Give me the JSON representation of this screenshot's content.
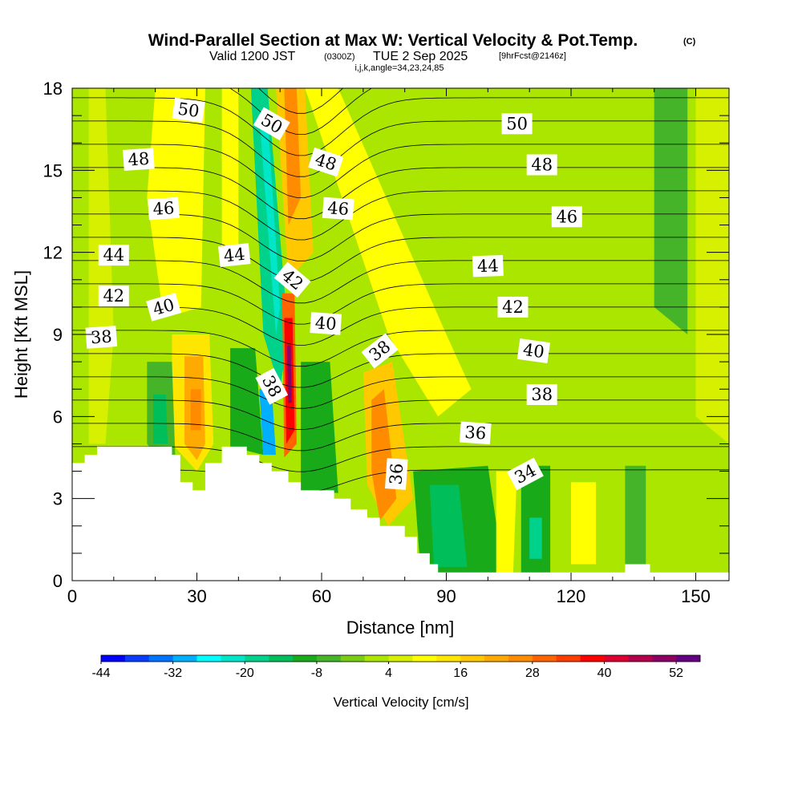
{
  "chart_data": {
    "type": "heatmap",
    "title": "Wind-Parallel Section at Max W: Vertical Velocity & Pot.Temp.",
    "title_mark": "(C)",
    "subtitle": {
      "valid": "Valid 1200 JST",
      "utc": "(0300Z)",
      "date": "TUE 2 Sep 2025",
      "forecast": "[9hrFcst@2146z]"
    },
    "indices": "i,j,k,angle=34,23,24,85",
    "xlabel": "Distance [nm]",
    "ylabel": "Height [Kft MSL]",
    "xlim": [
      0,
      158
    ],
    "ylim": [
      0,
      18
    ],
    "xticks": [
      "0",
      "30",
      "60",
      "90",
      "120",
      "150"
    ],
    "yticks": [
      "0",
      "3",
      "6",
      "9",
      "12",
      "15",
      "18"
    ],
    "colorbar": {
      "label": "Vertical Velocity [cm/s]",
      "min": -44,
      "max": 56,
      "step": 4,
      "tick_labels": [
        "-44",
        "-32",
        "-20",
        "-8",
        "4",
        "16",
        "28",
        "40",
        "52"
      ],
      "colors": [
        "#0000ff",
        "#0a3cff",
        "#0073ff",
        "#00b0ff",
        "#00ffff",
        "#00e6c8",
        "#00d28c",
        "#00be5a",
        "#19aa19",
        "#46b428",
        "#78cd14",
        "#aae600",
        "#d7f000",
        "#ffff00",
        "#ffe600",
        "#ffc800",
        "#ffaa00",
        "#ff8c00",
        "#ff6400",
        "#ff3c00",
        "#ff0000",
        "#dc0032",
        "#b4004b",
        "#8c0064",
        "#640082"
      ]
    },
    "terrain_top_kft": [
      {
        "x": 0,
        "h": 4.3
      },
      {
        "x": 3,
        "h": 4.3
      },
      {
        "x": 3,
        "h": 4.6
      },
      {
        "x": 6,
        "h": 4.6
      },
      {
        "x": 6,
        "h": 4.9
      },
      {
        "x": 24,
        "h": 4.9
      },
      {
        "x": 24,
        "h": 4.6
      },
      {
        "x": 26,
        "h": 4.6
      },
      {
        "x": 26,
        "h": 3.6
      },
      {
        "x": 29,
        "h": 3.6
      },
      {
        "x": 29,
        "h": 3.3
      },
      {
        "x": 32,
        "h": 3.3
      },
      {
        "x": 32,
        "h": 4.3
      },
      {
        "x": 36,
        "h": 4.3
      },
      {
        "x": 36,
        "h": 4.9
      },
      {
        "x": 42,
        "h": 4.9
      },
      {
        "x": 42,
        "h": 4.6
      },
      {
        "x": 45,
        "h": 4.6
      },
      {
        "x": 45,
        "h": 4.3
      },
      {
        "x": 48,
        "h": 4.3
      },
      {
        "x": 48,
        "h": 4.0
      },
      {
        "x": 52,
        "h": 4.0
      },
      {
        "x": 52,
        "h": 3.6
      },
      {
        "x": 55,
        "h": 3.6
      },
      {
        "x": 55,
        "h": 3.3
      },
      {
        "x": 63,
        "h": 3.3
      },
      {
        "x": 63,
        "h": 3.0
      },
      {
        "x": 67,
        "h": 3.0
      },
      {
        "x": 67,
        "h": 2.6
      },
      {
        "x": 71,
        "h": 2.6
      },
      {
        "x": 71,
        "h": 2.3
      },
      {
        "x": 74,
        "h": 2.3
      },
      {
        "x": 74,
        "h": 2.0
      },
      {
        "x": 80,
        "h": 2.0
      },
      {
        "x": 80,
        "h": 1.6
      },
      {
        "x": 83,
        "h": 1.6
      },
      {
        "x": 83,
        "h": 1.0
      },
      {
        "x": 86,
        "h": 1.0
      },
      {
        "x": 86,
        "h": 0.6
      },
      {
        "x": 88,
        "h": 0.6
      },
      {
        "x": 88,
        "h": 0.3
      },
      {
        "x": 133,
        "h": 0.3
      },
      {
        "x": 133,
        "h": 0.6
      },
      {
        "x": 139,
        "h": 0.6
      },
      {
        "x": 139,
        "h": 0.3
      },
      {
        "x": 158,
        "h": 0.3
      }
    ],
    "theta_contours": [
      {
        "value": 50,
        "labels": [
          {
            "text": "50",
            "x": 28,
            "y": 17.2,
            "angle": 8
          },
          {
            "text": "50",
            "x": 48,
            "y": 16.7,
            "angle": 30
          },
          {
            "text": "50",
            "x": 107,
            "y": 16.7,
            "angle": 0
          }
        ]
      },
      {
        "value": 48,
        "labels": [
          {
            "text": "48",
            "x": 16,
            "y": 15.4,
            "angle": -4
          },
          {
            "text": "48",
            "x": 61,
            "y": 15.3,
            "angle": 18
          },
          {
            "text": "48",
            "x": 113,
            "y": 15.2,
            "angle": 0
          }
        ]
      },
      {
        "value": 46,
        "labels": [
          {
            "text": "46",
            "x": 22,
            "y": 13.6,
            "angle": -4
          },
          {
            "text": "46",
            "x": 64,
            "y": 13.6,
            "angle": 4
          },
          {
            "text": "46",
            "x": 119,
            "y": 13.3,
            "angle": 0
          }
        ]
      },
      {
        "value": 44,
        "labels": [
          {
            "text": "44",
            "x": 10,
            "y": 11.9,
            "angle": 0
          },
          {
            "text": "44",
            "x": 39,
            "y": 11.9,
            "angle": -6
          },
          {
            "text": "44",
            "x": 100,
            "y": 11.5,
            "angle": -2
          }
        ]
      },
      {
        "value": 42,
        "labels": [
          {
            "text": "42",
            "x": 10,
            "y": 10.4,
            "angle": 0
          },
          {
            "text": "42",
            "x": 53,
            "y": 11.0,
            "angle": 40
          },
          {
            "text": "42",
            "x": 106,
            "y": 10.0,
            "angle": 0
          }
        ]
      },
      {
        "value": 40,
        "labels": [
          {
            "text": "40",
            "x": 22,
            "y": 10.0,
            "angle": -16
          },
          {
            "text": "40",
            "x": 61,
            "y": 9.4,
            "angle": 4
          },
          {
            "text": "40",
            "x": 111,
            "y": 8.4,
            "angle": 8
          }
        ]
      },
      {
        "value": 38,
        "labels": [
          {
            "text": "38",
            "x": 7,
            "y": 8.9,
            "angle": -4
          },
          {
            "text": "38",
            "x": 48,
            "y": 7.1,
            "angle": 62
          },
          {
            "text": "38",
            "x": 74,
            "y": 8.4,
            "angle": -38
          },
          {
            "text": "38",
            "x": 113,
            "y": 6.8,
            "angle": 0
          }
        ]
      },
      {
        "value": 36,
        "labels": [
          {
            "text": "36",
            "x": 78,
            "y": 3.9,
            "angle": -86
          },
          {
            "text": "36",
            "x": 97,
            "y": 5.4,
            "angle": 4
          }
        ]
      },
      {
        "value": 34,
        "labels": [
          {
            "text": "34",
            "x": 109,
            "y": 3.9,
            "angle": -28
          }
        ]
      }
    ]
  }
}
